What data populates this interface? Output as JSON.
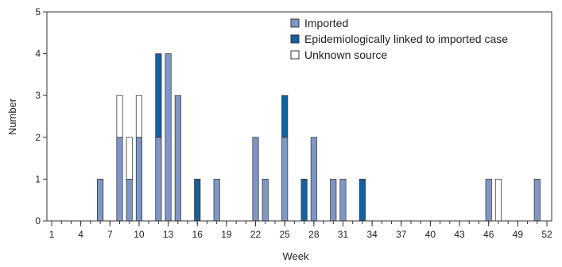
{
  "chart_data": {
    "type": "bar",
    "stacked": true,
    "title": "",
    "xlabel": "Week",
    "ylabel": "Number",
    "ylim": [
      0,
      5
    ],
    "yticks": [
      0,
      1,
      2,
      3,
      4,
      5
    ],
    "xlim": [
      1,
      52
    ],
    "xticks": [
      1,
      4,
      7,
      10,
      13,
      16,
      19,
      22,
      25,
      28,
      31,
      34,
      37,
      40,
      43,
      46,
      49,
      52
    ],
    "grid": false,
    "legend_position": "top-right",
    "weeks": [
      6,
      8,
      9,
      10,
      12,
      13,
      14,
      16,
      18,
      22,
      23,
      25,
      27,
      28,
      30,
      31,
      33,
      46,
      47,
      51
    ],
    "series": [
      {
        "name": "Imported",
        "color": "#7f97c8",
        "values": [
          1,
          2,
          1,
          2,
          2,
          4,
          3,
          0,
          1,
          2,
          1,
          2,
          0,
          2,
          1,
          1,
          0,
          1,
          0,
          1
        ]
      },
      {
        "name": "Epidemiologically linked to imported case",
        "color": "#15609e",
        "values": [
          0,
          0,
          0,
          0,
          2,
          0,
          0,
          1,
          0,
          0,
          0,
          1,
          1,
          0,
          0,
          0,
          1,
          0,
          0,
          0
        ]
      },
      {
        "name": "Unknown source",
        "color": "#ffffff",
        "values": [
          0,
          1,
          1,
          1,
          0,
          0,
          0,
          0,
          0,
          0,
          0,
          0,
          0,
          0,
          0,
          0,
          0,
          0,
          1,
          0
        ]
      }
    ]
  }
}
